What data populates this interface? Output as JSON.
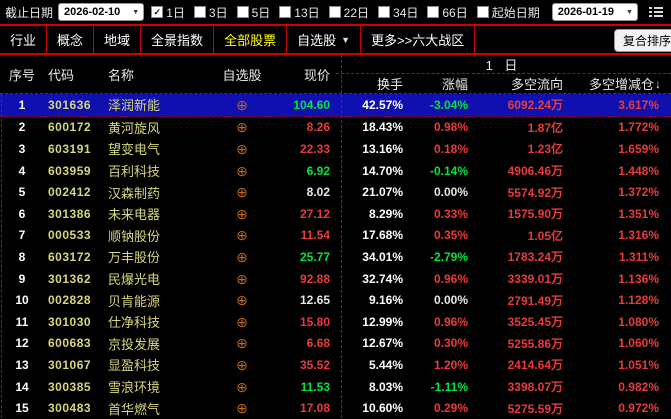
{
  "colors": {
    "accent_red": "#d40000",
    "up_red": "#e83b3b",
    "down_green": "#00e43e",
    "code_yellow": "#d6d67c",
    "active_tab_yellow": "#ffff00",
    "selected_row_blue": "#1010b0"
  },
  "icons": {
    "check": "✓",
    "dropdown_arrow": "▼",
    "watch_add": "⊕",
    "gear": "⚙",
    "sort_down": "↓"
  },
  "topbar": {
    "end_date_label": "截止日期",
    "end_date_value": "2026-02-10",
    "periods": [
      {
        "label": "1日",
        "checked": true
      },
      {
        "label": "3日",
        "checked": false
      },
      {
        "label": "5日",
        "checked": false
      },
      {
        "label": "13日",
        "checked": false
      },
      {
        "label": "22日",
        "checked": false
      },
      {
        "label": "34日",
        "checked": false
      },
      {
        "label": "66日",
        "checked": false
      }
    ],
    "start_date_label": "起始日期",
    "start_date_checked": false,
    "start_date_value": "2026-01-19"
  },
  "tabbar": {
    "tabs": [
      {
        "label": "行业",
        "active": false,
        "dropdown": false
      },
      {
        "label": "概念",
        "active": false,
        "dropdown": false
      },
      {
        "label": "地域",
        "active": false,
        "dropdown": false
      },
      {
        "label": "全景指数",
        "active": false,
        "dropdown": false
      },
      {
        "label": "全部股票",
        "active": true,
        "dropdown": false
      },
      {
        "label": "自选股",
        "active": false,
        "dropdown": true
      },
      {
        "label": "更多>>六大战区",
        "active": false,
        "dropdown": false
      }
    ],
    "composite_sort_label": "复合排序"
  },
  "table": {
    "columns": {
      "seq": "序号",
      "code": "代码",
      "name": "名称",
      "watch": "自选股",
      "price": "现价",
      "turnover": "换手",
      "change": "涨幅",
      "flow": "多空流向",
      "delta": "多空增减仓"
    },
    "group_header": "1 日",
    "rows": [
      {
        "seq": "1",
        "code": "301636",
        "name": "泽润新能",
        "price": "104.60",
        "price_c": "g",
        "turnover": "42.57%",
        "change": "-3.04%",
        "change_c": "g",
        "flow": "6092.24万",
        "delta": "3.617%",
        "selected": true
      },
      {
        "seq": "2",
        "code": "600172",
        "name": "黄河旋风",
        "price": "8.26",
        "price_c": "r",
        "turnover": "18.43%",
        "change": "0.98%",
        "change_c": "r",
        "flow": "1.87亿",
        "delta": "1.772%",
        "selected": false
      },
      {
        "seq": "3",
        "code": "603191",
        "name": "望变电气",
        "price": "22.33",
        "price_c": "r",
        "turnover": "13.16%",
        "change": "0.18%",
        "change_c": "r",
        "flow": "1.23亿",
        "delta": "1.659%",
        "selected": false
      },
      {
        "seq": "4",
        "code": "603959",
        "name": "百利科技",
        "price": "6.92",
        "price_c": "g",
        "turnover": "14.70%",
        "change": "-0.14%",
        "change_c": "g",
        "flow": "4906.46万",
        "delta": "1.448%",
        "selected": false
      },
      {
        "seq": "5",
        "code": "002412",
        "name": "汉森制药",
        "price": "8.02",
        "price_c": "w",
        "turnover": "21.07%",
        "change": "0.00%",
        "change_c": "w",
        "flow": "5574.92万",
        "delta": "1.372%",
        "selected": false
      },
      {
        "seq": "6",
        "code": "301386",
        "name": "未来电器",
        "price": "27.12",
        "price_c": "r",
        "turnover": "8.29%",
        "change": "0.33%",
        "change_c": "r",
        "flow": "1575.90万",
        "delta": "1.351%",
        "selected": false
      },
      {
        "seq": "7",
        "code": "000533",
        "name": "顺钠股份",
        "price": "11.54",
        "price_c": "r",
        "turnover": "17.68%",
        "change": "0.35%",
        "change_c": "r",
        "flow": "1.05亿",
        "delta": "1.316%",
        "selected": false
      },
      {
        "seq": "8",
        "code": "603172",
        "name": "万丰股份",
        "price": "25.77",
        "price_c": "g",
        "turnover": "34.01%",
        "change": "-2.79%",
        "change_c": "g",
        "flow": "1783.24万",
        "delta": "1.311%",
        "selected": false
      },
      {
        "seq": "9",
        "code": "301362",
        "name": "民爆光电",
        "price": "92.88",
        "price_c": "r",
        "turnover": "32.74%",
        "change": "0.96%",
        "change_c": "r",
        "flow": "3339.01万",
        "delta": "1.136%",
        "selected": false
      },
      {
        "seq": "10",
        "code": "002828",
        "name": "贝肯能源",
        "price": "12.65",
        "price_c": "w",
        "turnover": "9.16%",
        "change": "0.00%",
        "change_c": "w",
        "flow": "2791.49万",
        "delta": "1.128%",
        "selected": false
      },
      {
        "seq": "11",
        "code": "301030",
        "name": "仕净科技",
        "price": "15.80",
        "price_c": "r",
        "turnover": "12.99%",
        "change": "0.96%",
        "change_c": "r",
        "flow": "3525.45万",
        "delta": "1.080%",
        "selected": false
      },
      {
        "seq": "12",
        "code": "600683",
        "name": "京投发展",
        "price": "6.68",
        "price_c": "r",
        "turnover": "12.67%",
        "change": "0.30%",
        "change_c": "r",
        "flow": "5255.86万",
        "delta": "1.060%",
        "selected": false
      },
      {
        "seq": "13",
        "code": "301067",
        "name": "显盈科技",
        "price": "35.52",
        "price_c": "r",
        "turnover": "5.44%",
        "change": "1.20%",
        "change_c": "r",
        "flow": "2414.64万",
        "delta": "1.051%",
        "selected": false
      },
      {
        "seq": "14",
        "code": "300385",
        "name": "雪浪环境",
        "price": "11.53",
        "price_c": "g",
        "turnover": "8.03%",
        "change": "-1.11%",
        "change_c": "g",
        "flow": "3398.07万",
        "delta": "0.982%",
        "selected": false
      },
      {
        "seq": "15",
        "code": "300483",
        "name": "首华燃气",
        "price": "17.08",
        "price_c": "r",
        "turnover": "10.60%",
        "change": "0.29%",
        "change_c": "r",
        "flow": "5275.59万",
        "delta": "0.972%",
        "selected": false
      }
    ]
  }
}
